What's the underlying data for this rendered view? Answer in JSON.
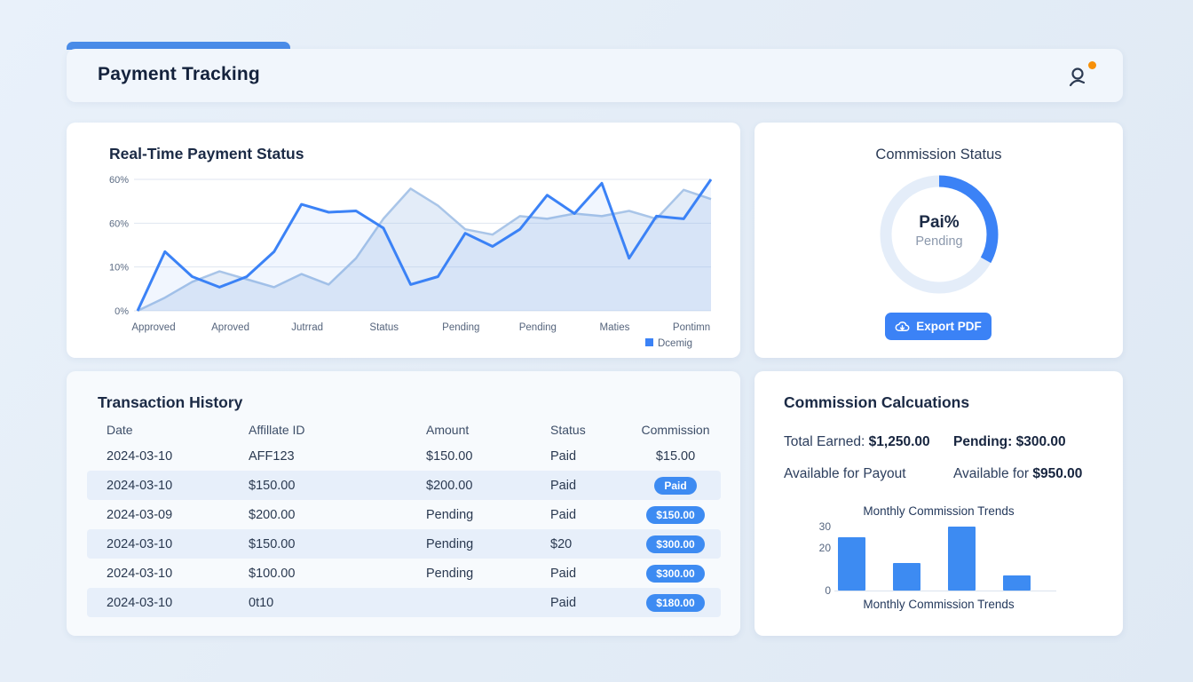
{
  "header": {
    "title": "Payment Tracking"
  },
  "colors": {
    "accent": "#3b82f6",
    "tab": "#4a8ce8",
    "pill": "#3d8bf2",
    "line_secondary": "#a9c5e8",
    "line_fill": "rgba(169,197,232,0.32)",
    "donut_track": "#e4edf9",
    "notification": "#f79009",
    "grid": "#dfe6f0",
    "axis_text": "#5b6b83"
  },
  "commission_status_card": {
    "export_label": "Export PDF"
  },
  "transactions": {
    "title": "Transaction History",
    "columns": [
      "Date",
      "Affillate ID",
      "Amount",
      "Status",
      "Commission"
    ],
    "rows": [
      {
        "date": "2024-03-10",
        "affiliate": "AFF123",
        "amount": "$150.00",
        "status": "Paid",
        "commission": "$15.00",
        "pill": false
      },
      {
        "date": "2024-03-10",
        "affiliate": "$150.00",
        "amount": "$200.00",
        "status": "Paid",
        "commission": "Paid",
        "pill": true
      },
      {
        "date": "2024-03-09",
        "affiliate": "$200.00",
        "amount": "Pending",
        "status": "Paid",
        "commission": "$150.00",
        "pill": true
      },
      {
        "date": "2024-03-10",
        "affiliate": "$150.00",
        "amount": "Pending",
        "status": "$20",
        "commission": "$300.00",
        "pill": true
      },
      {
        "date": "2024-03-10",
        "affiliate": "$100.00",
        "amount": "Pending",
        "status": "Paid",
        "commission": "$300.00",
        "pill": true
      },
      {
        "date": "2024-03-10",
        "affiliate": "0t10",
        "amount": "",
        "status": "Paid",
        "commission": "$180.00",
        "pill": true
      }
    ]
  },
  "calculations": {
    "title": "Commission Calcuations",
    "total_label": "Total Earned:",
    "total_value": "$1,250.00",
    "pending_label": "Pending:",
    "pending_value": "$300.00",
    "available_label": "Available for Payout",
    "available2_label": "Available for",
    "available2_value": "$950.00"
  },
  "chart_data": [
    {
      "type": "line",
      "title": "Real-Time Payment Status",
      "categories": [
        "Approved",
        "Aproved",
        "Jutrrad",
        "Status",
        "Pending",
        "Pending",
        "Maties",
        "Pontimn"
      ],
      "yticks": [
        "60%",
        "60%",
        "10%",
        "0%"
      ],
      "ylim": [
        0,
        100
      ],
      "legend": [
        {
          "label": "Dcemig",
          "color": "#3b82f6"
        }
      ],
      "series": [
        {
          "name": "secondary",
          "color": "#a9c5e8",
          "values": [
            0,
            10,
            22,
            30,
            24,
            18,
            28,
            20,
            40,
            70,
            93,
            80,
            62,
            58,
            72,
            70,
            74,
            72,
            76,
            70,
            92,
            85
          ]
        },
        {
          "name": "primary",
          "color": "#3b82f6",
          "values": [
            0,
            45,
            26,
            18,
            26,
            45,
            81,
            75,
            76,
            63,
            20,
            26,
            59,
            49,
            62,
            88,
            74,
            97,
            40,
            72,
            70,
            100
          ]
        }
      ]
    },
    {
      "type": "pie",
      "title": "Commission Status",
      "center_value": "Pai%",
      "center_label": "Pending",
      "percent_filled": 33
    },
    {
      "type": "bar",
      "title": "Monthly Commission Trends",
      "xlabel": "Monthly Commission Trends",
      "yticks": [
        30,
        20,
        0
      ],
      "values": [
        25,
        13,
        30,
        7
      ],
      "ylim": [
        0,
        30
      ]
    }
  ]
}
